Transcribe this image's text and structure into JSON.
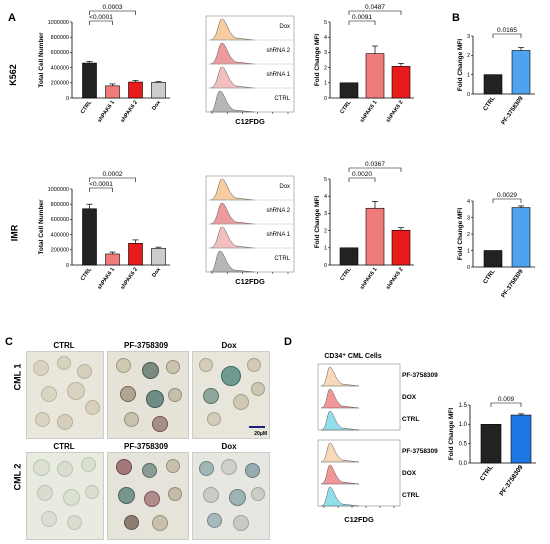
{
  "panels": {
    "A": "A",
    "B": "B",
    "C": "C",
    "D": "D"
  },
  "rows": {
    "k562": "K562",
    "imr": "IMR",
    "cml1": "CML 1",
    "cml2": "CML 2"
  },
  "colors": {
    "ctrl": "#222222",
    "sh1": "#f07b7b",
    "sh2": "#e81a1a",
    "dox": "#cccccc",
    "pf": "#4da3ee",
    "pf_dark": "#1c78e3",
    "hist_dox": "#f4c38f",
    "hist_sh2": "#e88a8a",
    "hist_sh1": "#f0b3b3",
    "hist_ctrl": "#a9a9a9",
    "hist_pf": "#f6d3ad",
    "hist_doxD": "#f08585",
    "hist_ctrlD": "#7fd8e8"
  },
  "histograms": {
    "top": {
      "labels": [
        "Dox",
        "shRNA 2",
        "shRNA 1",
        "CTRL"
      ],
      "xlabel": "C12FDG"
    },
    "mid": {
      "labels": [
        "Dox",
        "shRNA 2",
        "shRNA 1",
        "CTRL"
      ],
      "xlabel": "C12FDG"
    },
    "D": {
      "title": "CD34⁺ CML Cells",
      "labels1": [
        "PF-3758309",
        "DOX",
        "CTRL"
      ],
      "labels2": [
        "PF-3758309",
        "DOX",
        "CTRL"
      ],
      "xlabel": "C12FDG"
    }
  },
  "microscopy": {
    "cols": [
      "CTRL",
      "PF-3758309",
      "Dox"
    ],
    "scale": "20μM"
  },
  "chart_data": [
    {
      "id": "A-K562-count",
      "type": "bar",
      "ylabel": "Total Cell Number",
      "categories": [
        "CTRL",
        "shPAK6 1",
        "shPAK6 2",
        "Dox"
      ],
      "values": [
        460000,
        160000,
        210000,
        205000
      ],
      "errors": [
        20000,
        25000,
        20000,
        10000
      ],
      "ylim": [
        0,
        1000000
      ],
      "yticks": [
        "0",
        "200000",
        "400000",
        "600000",
        "800000",
        "1000000"
      ],
      "brackets": [
        {
          "from": 0,
          "to": 2,
          "label": "0.0003"
        },
        {
          "from": 0,
          "to": 1,
          "label": "<0.0001"
        }
      ]
    },
    {
      "id": "A-K562-mfi",
      "type": "bar",
      "ylabel": "Fold Change MFI",
      "categories": [
        "CTRL",
        "shPAK6 1",
        "shPAK6 2"
      ],
      "values": [
        1.0,
        2.92,
        2.08
      ],
      "errors": [
        0.0,
        0.5,
        0.2
      ],
      "ylim": [
        0,
        5
      ],
      "yticks": [
        "0",
        "1",
        "2",
        "3",
        "4",
        "5"
      ],
      "brackets": [
        {
          "from": 0,
          "to": 2,
          "label": "0.0487"
        },
        {
          "from": 0,
          "to": 1,
          "label": "0.0091"
        }
      ]
    },
    {
      "id": "B-K562-mfi",
      "type": "bar",
      "ylabel": "Fold Change MFI",
      "categories": [
        "CTRL",
        "PF-3758309"
      ],
      "values": [
        1.0,
        2.25
      ],
      "errors": [
        0.0,
        0.15
      ],
      "ylim": [
        0,
        3
      ],
      "yticks": [
        "0",
        "1",
        "2",
        "3"
      ],
      "brackets": [
        {
          "from": 0,
          "to": 1,
          "label": "0.0165"
        }
      ]
    },
    {
      "id": "A-IMR-count",
      "type": "bar",
      "ylabel": "Total Cell Number",
      "categories": [
        "CTRL",
        "shPAK6 1",
        "shPAK6 2",
        "Dox"
      ],
      "values": [
        740000,
        145000,
        285000,
        220000
      ],
      "errors": [
        60000,
        25000,
        45000,
        15000
      ],
      "ylim": [
        0,
        1000000
      ],
      "yticks": [
        "0",
        "200000",
        "400000",
        "600000",
        "800000",
        "1000000"
      ],
      "brackets": [
        {
          "from": 0,
          "to": 2,
          "label": "0.0002"
        },
        {
          "from": 0,
          "to": 1,
          "label": "<0.0001"
        }
      ]
    },
    {
      "id": "A-IMR-mfi",
      "type": "bar",
      "ylabel": "Fold Change MFI",
      "categories": [
        "CTRL",
        "shPAK6 1",
        "shPAK6 2"
      ],
      "values": [
        1.0,
        3.3,
        2.02
      ],
      "errors": [
        0.0,
        0.4,
        0.15
      ],
      "ylim": [
        0,
        5
      ],
      "yticks": [
        "0",
        "1",
        "2",
        "3",
        "4",
        "5"
      ],
      "brackets": [
        {
          "from": 0,
          "to": 2,
          "label": "0.0367"
        },
        {
          "from": 0,
          "to": 1,
          "label": "0.0020"
        }
      ]
    },
    {
      "id": "B-IMR-mfi",
      "type": "bar",
      "ylabel": "Fold Change MFI",
      "categories": [
        "CTRL",
        "PF-3758309"
      ],
      "values": [
        1.0,
        3.6
      ],
      "errors": [
        0.0,
        0.1
      ],
      "ylim": [
        0,
        4
      ],
      "yticks": [
        "0",
        "1",
        "2",
        "3",
        "4"
      ],
      "brackets": [
        {
          "from": 0,
          "to": 1,
          "label": "0.0029"
        }
      ]
    },
    {
      "id": "D-mfi",
      "type": "bar",
      "ylabel": "Fold Change MFI",
      "categories": [
        "CTRL",
        "PF-3758309"
      ],
      "values": [
        1.0,
        1.24
      ],
      "errors": [
        0.0,
        0.03
      ],
      "ylim": [
        0,
        1.5
      ],
      "yticks": [
        "0.0",
        "0.5",
        "1.0",
        "1.5"
      ],
      "brackets": [
        {
          "from": 0,
          "to": 1,
          "label": "0.009"
        }
      ]
    }
  ]
}
